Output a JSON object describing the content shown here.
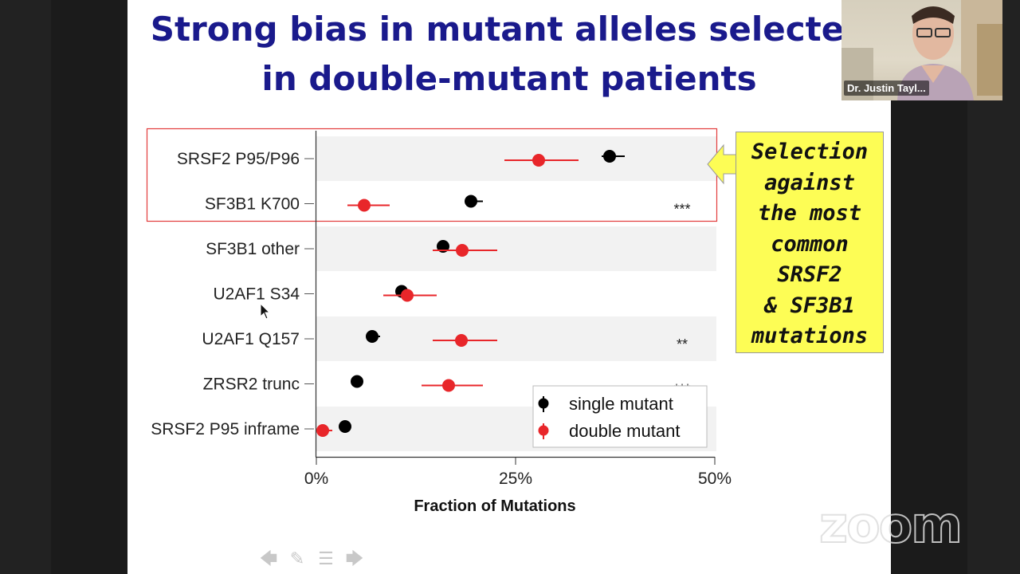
{
  "slide": {
    "title_line1": "Strong bias in mutant alleles selected",
    "title_line2": "in double-mutant patients",
    "callout_lines": [
      "Selection",
      "against",
      "the most",
      "common",
      "SRSF2",
      "& SF3B1",
      "mutations"
    ]
  },
  "chart_data": {
    "type": "scatter",
    "orientation": "horizontal",
    "categories": [
      "SRSF2 P95/P96",
      "SF3B1 K700",
      "SF3B1 other",
      "U2AF1 S34",
      "U2AF1 Q157",
      "ZRSR2 trunc",
      "SRSF2 P95 inframe"
    ],
    "series": [
      {
        "name": "single mutant",
        "color": "#000000",
        "values": [
          36.8,
          19.4,
          15.9,
          10.7,
          7.0,
          5.1,
          3.6
        ],
        "err_low": [
          35.8,
          18.8,
          15.5,
          10.2,
          6.6,
          5.1,
          3.6
        ],
        "err_high": [
          38.7,
          20.9,
          16.5,
          11.3,
          8.0,
          5.1,
          3.6
        ]
      },
      {
        "name": "double mutant",
        "color": "#e8262a",
        "values": [
          27.9,
          6.0,
          18.3,
          11.4,
          18.2,
          16.6,
          0.8
        ],
        "err_low": [
          23.6,
          3.9,
          14.6,
          8.4,
          14.6,
          13.2,
          0.1
        ],
        "err_high": [
          32.9,
          9.2,
          22.7,
          15.1,
          22.7,
          20.9,
          2.0
        ]
      }
    ],
    "annotations": [
      "",
      "***",
      "",
      "",
      "**",
      "***",
      ""
    ],
    "xlabel": "Fraction of Mutations",
    "xticks": [
      "0%",
      "25%",
      "50%"
    ],
    "xtick_values": [
      0,
      25,
      50
    ],
    "xlim": [
      0,
      50
    ],
    "legend_position": "bottom-right",
    "highlighted_rows": [
      "SRSF2 P95/P96",
      "SF3B1 K700"
    ]
  },
  "video": {
    "participant_name": "Dr. Justin Tayl...",
    "watermark": "zoom"
  },
  "toolbar": {
    "icons": [
      "arrow-left-icon",
      "pen-icon",
      "menu-icon",
      "arrow-right-icon"
    ]
  }
}
